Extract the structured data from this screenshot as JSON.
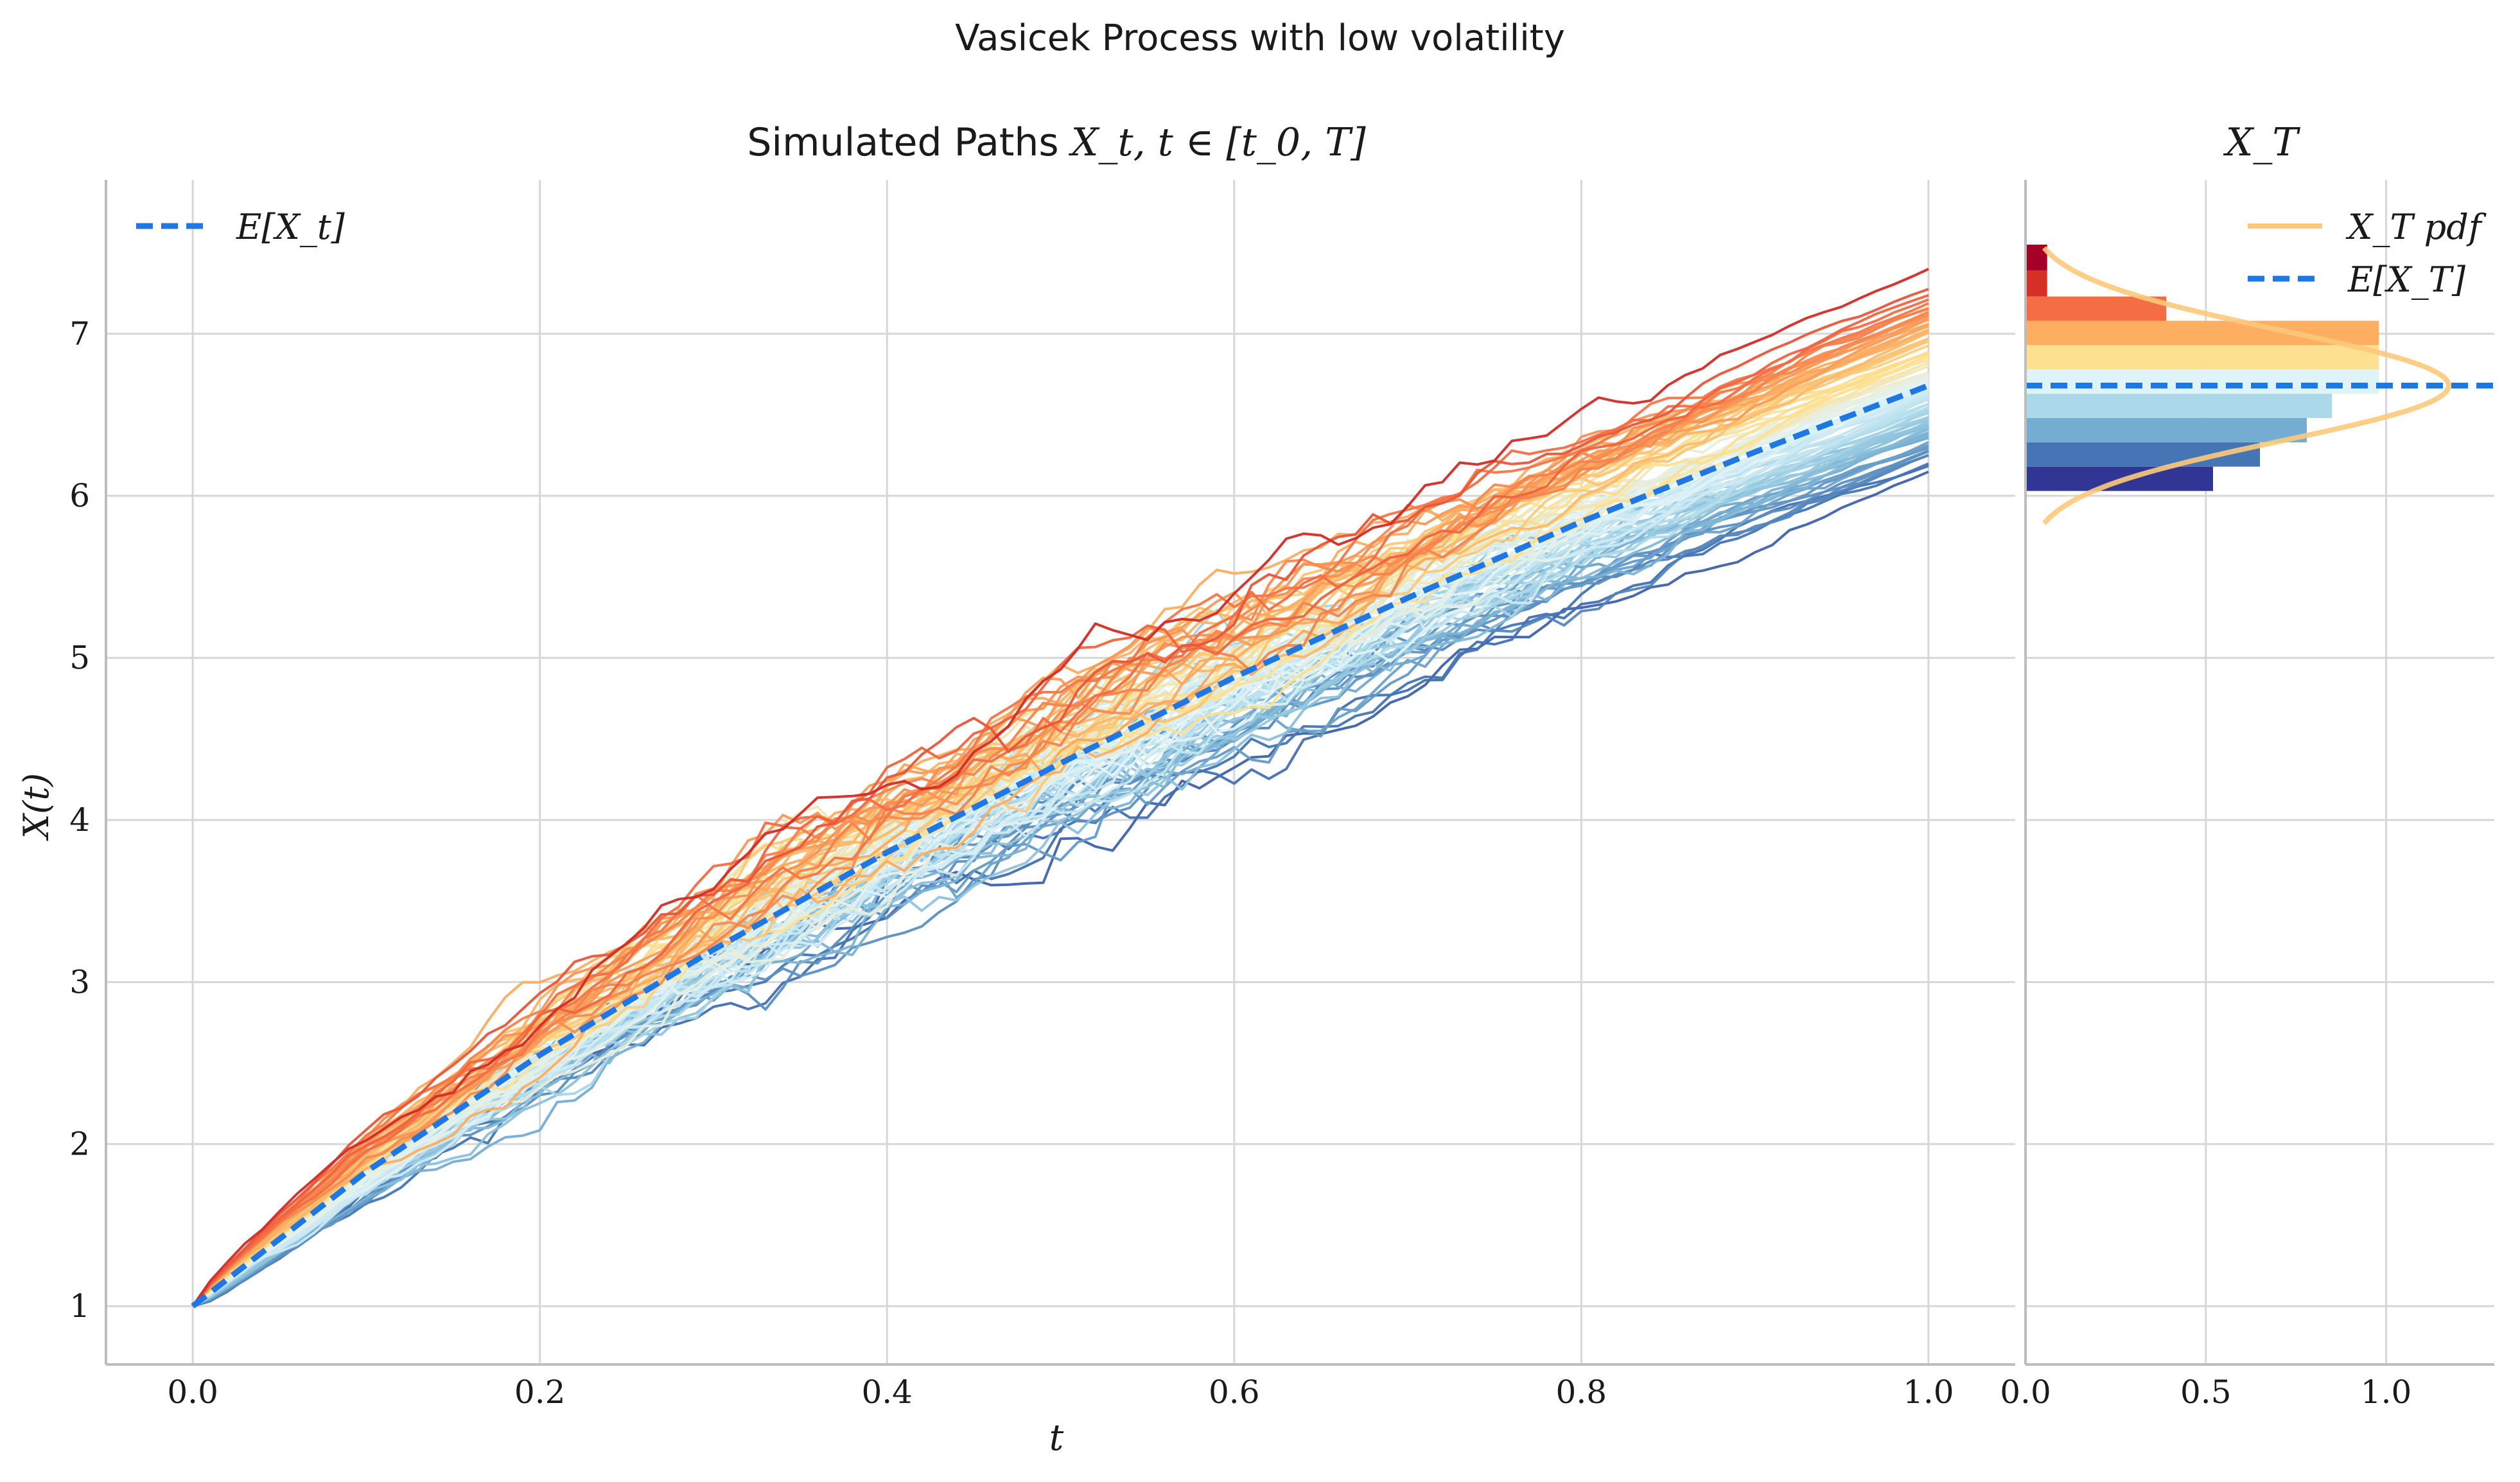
{
  "figure": {
    "suptitle": "Vasicek Process with low volatility"
  },
  "colors": {
    "expectation_line": "#1f77e4",
    "pdf_line": "#fdc97a",
    "grid": "#d7d7d7",
    "axis": "#bdbdbd",
    "palette": [
      "#313695",
      "#4575b4",
      "#74add1",
      "#abd9e9",
      "#e0f3f8",
      "#fee090",
      "#fdae61",
      "#f46d43",
      "#d73027",
      "#a50026"
    ]
  },
  "chart_data": [
    {
      "type": "line",
      "title_prefix": "Simulated Paths ",
      "title_math": "X_t, t ∈ [t_0, T]",
      "xlabel": "t",
      "ylabel": "X(t)",
      "xlim": [
        -0.05,
        1.05
      ],
      "ylim": [
        0.64,
        7.95
      ],
      "xticks": [
        0.0,
        0.2,
        0.4,
        0.6,
        0.8,
        1.0
      ],
      "xtick_labels": [
        "0.0",
        "0.2",
        "0.4",
        "0.6",
        "0.8",
        "1.0"
      ],
      "yticks": [
        1,
        2,
        3,
        4,
        5,
        6,
        7
      ],
      "ytick_labels": [
        "1",
        "2",
        "3",
        "4",
        "5",
        "6",
        "7"
      ],
      "grid": true,
      "legend_position": "top-left",
      "legend": [
        {
          "label": "E[X_t]",
          "style": "dashed",
          "color": "#1f77e4"
        }
      ],
      "initial_value": 1.0,
      "expectation": {
        "name": "E[X_t]",
        "x": [
          0.0,
          0.1,
          0.2,
          0.3,
          0.4,
          0.5,
          0.6,
          0.7,
          0.8,
          0.9,
          1.0
        ],
        "y": [
          1.0,
          1.83,
          2.55,
          3.2,
          3.8,
          4.35,
          4.88,
          5.37,
          5.84,
          6.27,
          6.68
        ]
      },
      "paths_count": 100,
      "paths_final_range": [
        6.03,
        7.55
      ],
      "paths_final_max": 7.55,
      "paths_final_min": 6.03
    },
    {
      "type": "bar",
      "orientation": "horizontal",
      "title_math": "X_T",
      "xlim": [
        0.0,
        1.3
      ],
      "ylim": [
        0.64,
        7.95
      ],
      "xticks": [
        0.0,
        0.5,
        1.0
      ],
      "xtick_labels": [
        "0.0",
        "0.5",
        "1.0"
      ],
      "grid": true,
      "legend_position": "top-right",
      "legend": [
        {
          "label": "X_T pdf",
          "style": "solid",
          "color": "#fdc97a"
        },
        {
          "label": "E[X_T]",
          "style": "dashed",
          "color": "#1f77e4"
        }
      ],
      "bins": [
        {
          "y0": 6.03,
          "y1": 6.18,
          "density": 0.52,
          "color": "#313695"
        },
        {
          "y0": 6.18,
          "y1": 6.33,
          "density": 0.65,
          "color": "#4575b4"
        },
        {
          "y0": 6.33,
          "y1": 6.48,
          "density": 0.78,
          "color": "#74add1"
        },
        {
          "y0": 6.48,
          "y1": 6.63,
          "density": 0.85,
          "color": "#abd9e9"
        },
        {
          "y0": 6.63,
          "y1": 6.78,
          "density": 0.98,
          "color": "#e0f3f8"
        },
        {
          "y0": 6.78,
          "y1": 6.93,
          "density": 0.98,
          "color": "#fee090"
        },
        {
          "y0": 6.93,
          "y1": 7.08,
          "density": 0.98,
          "color": "#fdae61"
        },
        {
          "y0": 7.08,
          "y1": 7.23,
          "density": 0.39,
          "color": "#f46d43"
        },
        {
          "y0": 7.23,
          "y1": 7.39,
          "density": 0.06,
          "color": "#d73027"
        },
        {
          "y0": 7.39,
          "y1": 7.55,
          "density": 0.06,
          "color": "#a50026"
        }
      ],
      "pdf": {
        "mean": 6.68,
        "std": 0.34
      },
      "mean_line": 6.68
    }
  ]
}
